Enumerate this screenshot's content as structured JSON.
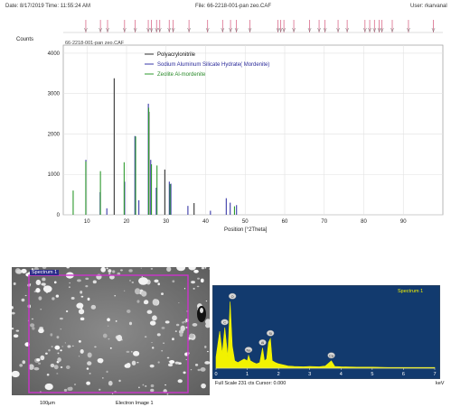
{
  "header": {
    "date": "Date: 8/17/2019 Time: 11:55:24 AM",
    "file": "File: 66-2218-001-pan zeo.CAF",
    "user": "User: rkarvanal"
  },
  "colors": {
    "polyacrylonitrile": "#333333",
    "mordenite": "#3a3aa8",
    "zeolite": "#2e9a2e",
    "marker": "#d96a8a",
    "eds_bg": "#123a6e",
    "eds_spectrum": "#f2f200",
    "sem_frame": "#cc33cc"
  },
  "chart_data": [
    {
      "type": "bar",
      "inner_title": "66-2218-001-pan zeo.CAF",
      "ylabel": "Counts",
      "xlabel": "Position [°2Theta]",
      "xlim": [
        4,
        100
      ],
      "ylim": [
        0,
        4200
      ],
      "xticks": [
        10,
        20,
        30,
        40,
        50,
        60,
        70,
        80,
        90
      ],
      "yticks": [
        0,
        1000,
        2000,
        3000,
        4000
      ],
      "grid": true,
      "legend_position": "top",
      "top_markers": [
        9.7,
        13.4,
        15.2,
        19.5,
        22.2,
        25.5,
        26.3,
        27.6,
        28.4,
        30.8,
        31.8,
        35.8,
        40.5,
        44.3,
        46.3,
        47.8,
        51.2,
        58.3,
        59.0,
        59.8,
        62.3,
        66.3,
        68.7,
        70.2,
        73.5,
        75.8,
        80.3,
        81.5,
        82.7,
        83.9,
        84.6,
        87.2,
        91.3,
        97.6
      ],
      "series": [
        {
          "name": "Polyacrylonitrile",
          "color": "#333333",
          "x": [
            16.8,
            25.6,
            29.6,
            37.0
          ],
          "values": [
            3380,
            2550,
            1120,
            290
          ]
        },
        {
          "name": "Sodium Aluminum Silicate Hydrate( Mordenite)",
          "color": "#3a3aa8",
          "x": [
            9.8,
            13.4,
            15.1,
            19.6,
            22.2,
            23.2,
            25.6,
            26.2,
            27.6,
            30.9,
            31.3,
            35.6,
            41.3,
            45.3,
            46.3,
            47.9
          ],
          "values": [
            1360,
            560,
            160,
            820,
            1950,
            360,
            2750,
            1360,
            670,
            820,
            770,
            220,
            100,
            410,
            300,
            240
          ]
        },
        {
          "name": "Zeolite Al-mordenite",
          "color": "#2e9a2e",
          "x": [
            6.5,
            9.7,
            13.4,
            19.4,
            22.3,
            25.6,
            26.3,
            27.7,
            31.0,
            47.3
          ],
          "values": [
            600,
            1320,
            1080,
            1300,
            1940,
            2650,
            1250,
            1220,
            760,
            210
          ]
        }
      ]
    },
    {
      "type": "area",
      "title": "Spectrum 1",
      "xlabel": "keV",
      "xlim": [
        0,
        7
      ],
      "xticks": [
        0,
        1,
        2,
        3,
        4,
        5,
        6,
        7
      ],
      "footer": "Full Scale 231 cts Cursor: 0.000",
      "x": [
        0,
        0.12,
        0.2,
        0.28,
        0.38,
        0.45,
        0.52,
        0.6,
        0.7,
        0.8,
        0.9,
        1.0,
        1.04,
        1.1,
        1.2,
        1.3,
        1.4,
        1.49,
        1.55,
        1.62,
        1.68,
        1.74,
        1.8,
        1.9,
        2.0,
        2.1,
        2.2,
        2.3,
        2.5,
        2.8,
        3.0,
        3.3,
        3.5,
        3.69,
        3.8,
        4.0,
        4.5,
        5.0,
        5.5,
        6.0,
        6.5,
        7.0
      ],
      "values": [
        30,
        100,
        40,
        110,
        30,
        180,
        60,
        20,
        15,
        20,
        25,
        20,
        35,
        20,
        15,
        12,
        15,
        55,
        20,
        25,
        70,
        80,
        20,
        15,
        12,
        10,
        8,
        6,
        5,
        4,
        5,
        4,
        6,
        20,
        5,
        4,
        3,
        3,
        2,
        2,
        2,
        2
      ],
      "peaks": [
        {
          "label": "C",
          "x": 0.277,
          "value": 110
        },
        {
          "label": "O",
          "x": 0.525,
          "value": 180
        },
        {
          "label": "Na",
          "x": 1.04,
          "value": 35
        },
        {
          "label": "Al",
          "x": 1.49,
          "value": 55
        },
        {
          "label": "Si",
          "x": 1.74,
          "value": 80
        },
        {
          "label": "Ca",
          "x": 3.69,
          "value": 20
        }
      ]
    }
  ],
  "sem": {
    "tag": "Spectrum 1",
    "scale": "100µm",
    "caption": "Electron Image 1"
  }
}
